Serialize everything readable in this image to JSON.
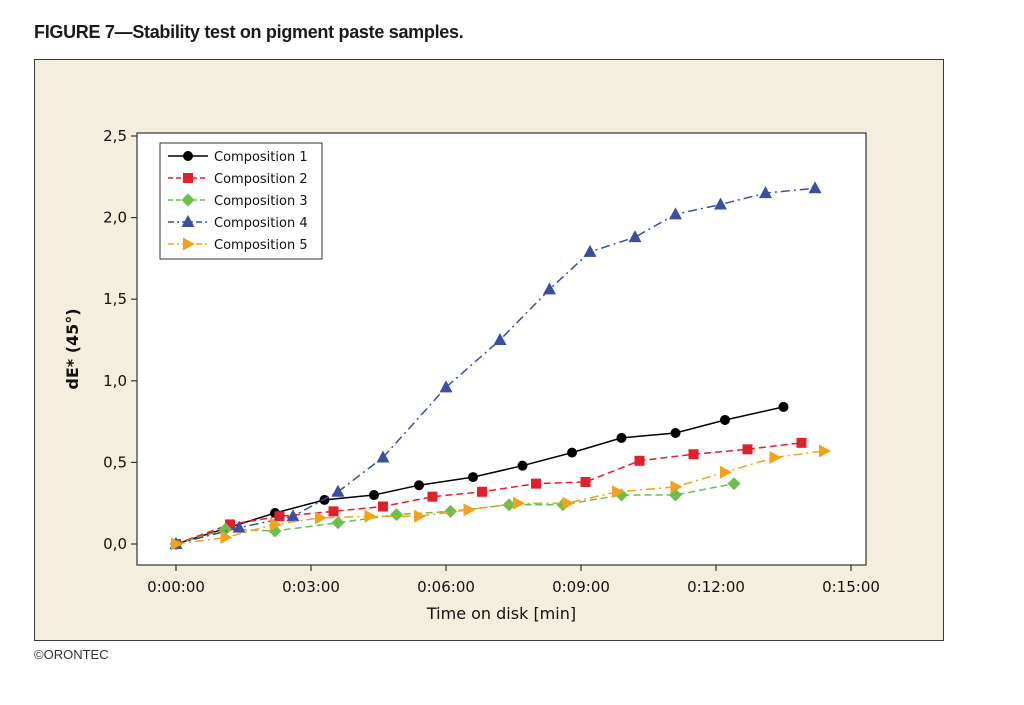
{
  "figure": {
    "title": "FIGURE 7—Stability test on pigment paste samples.",
    "credit": "©ORONTEC"
  },
  "chart_data": {
    "type": "line",
    "title": "",
    "xlabel": "Time on disk [min]",
    "ylabel": "dE* (45°)",
    "xlim": [
      0,
      15
    ],
    "ylim": [
      0,
      2.5
    ],
    "x_ticks": [
      0,
      3,
      6,
      9,
      12,
      15
    ],
    "x_tick_labels": [
      "0:00:00",
      "0:03:00",
      "0:06:00",
      "0:09:00",
      "0:12:00",
      "0:15:00"
    ],
    "y_ticks": [
      0,
      0.5,
      1,
      1.5,
      2,
      2.5
    ],
    "y_tick_labels": [
      "0,0",
      "0,5",
      "1,0",
      "1,5",
      "2,0",
      "2,5"
    ],
    "grid": false,
    "legend_position": "top-left",
    "series": [
      {
        "name": "Composition 1",
        "color": "#000000",
        "marker": "circle",
        "dash": "solid",
        "x": [
          0,
          2.2,
          3.3,
          4.4,
          5.4,
          6.6,
          7.7,
          8.8,
          9.9,
          11.1,
          12.2,
          13.5
        ],
        "y": [
          0.0,
          0.19,
          0.27,
          0.3,
          0.36,
          0.41,
          0.48,
          0.56,
          0.65,
          0.68,
          0.76,
          0.84
        ]
      },
      {
        "name": "Composition 2",
        "color": "#e0202a",
        "marker": "square",
        "dash": "dashed",
        "x": [
          0,
          1.2,
          2.3,
          3.5,
          4.6,
          5.7,
          6.8,
          8.0,
          9.1,
          10.3,
          11.5,
          12.7,
          13.9
        ],
        "y": [
          0.0,
          0.12,
          0.17,
          0.2,
          0.23,
          0.29,
          0.32,
          0.37,
          0.38,
          0.51,
          0.55,
          0.58,
          0.62
        ]
      },
      {
        "name": "Composition 3",
        "color": "#6cc04a",
        "marker": "diamond",
        "dash": "dashed",
        "x": [
          0,
          1.1,
          2.2,
          3.6,
          4.9,
          6.1,
          7.4,
          8.6,
          9.9,
          11.1,
          12.4
        ],
        "y": [
          0.0,
          0.09,
          0.08,
          0.13,
          0.18,
          0.2,
          0.24,
          0.24,
          0.3,
          0.3,
          0.37
        ]
      },
      {
        "name": "Composition 4",
        "color": "#3a4fa0",
        "marker": "triangle-up",
        "dash": "dashdot",
        "x": [
          0,
          1.4,
          2.6,
          3.6,
          4.6,
          6.0,
          7.2,
          8.3,
          9.2,
          10.2,
          11.1,
          12.1,
          13.1,
          14.2
        ],
        "y": [
          0.0,
          0.1,
          0.17,
          0.32,
          0.53,
          0.96,
          1.25,
          1.56,
          1.79,
          1.88,
          2.02,
          2.08,
          2.15,
          2.18
        ]
      },
      {
        "name": "Composition 5",
        "color": "#f4a11b",
        "marker": "triangle-right",
        "dash": "dashdot",
        "x": [
          0,
          1.1,
          2.2,
          3.2,
          4.3,
          5.4,
          6.5,
          7.6,
          8.7,
          9.8,
          11.1,
          12.2,
          13.3,
          14.4
        ],
        "y": [
          0.0,
          0.04,
          0.12,
          0.16,
          0.17,
          0.17,
          0.21,
          0.25,
          0.25,
          0.32,
          0.35,
          0.44,
          0.53,
          0.57
        ]
      }
    ]
  }
}
